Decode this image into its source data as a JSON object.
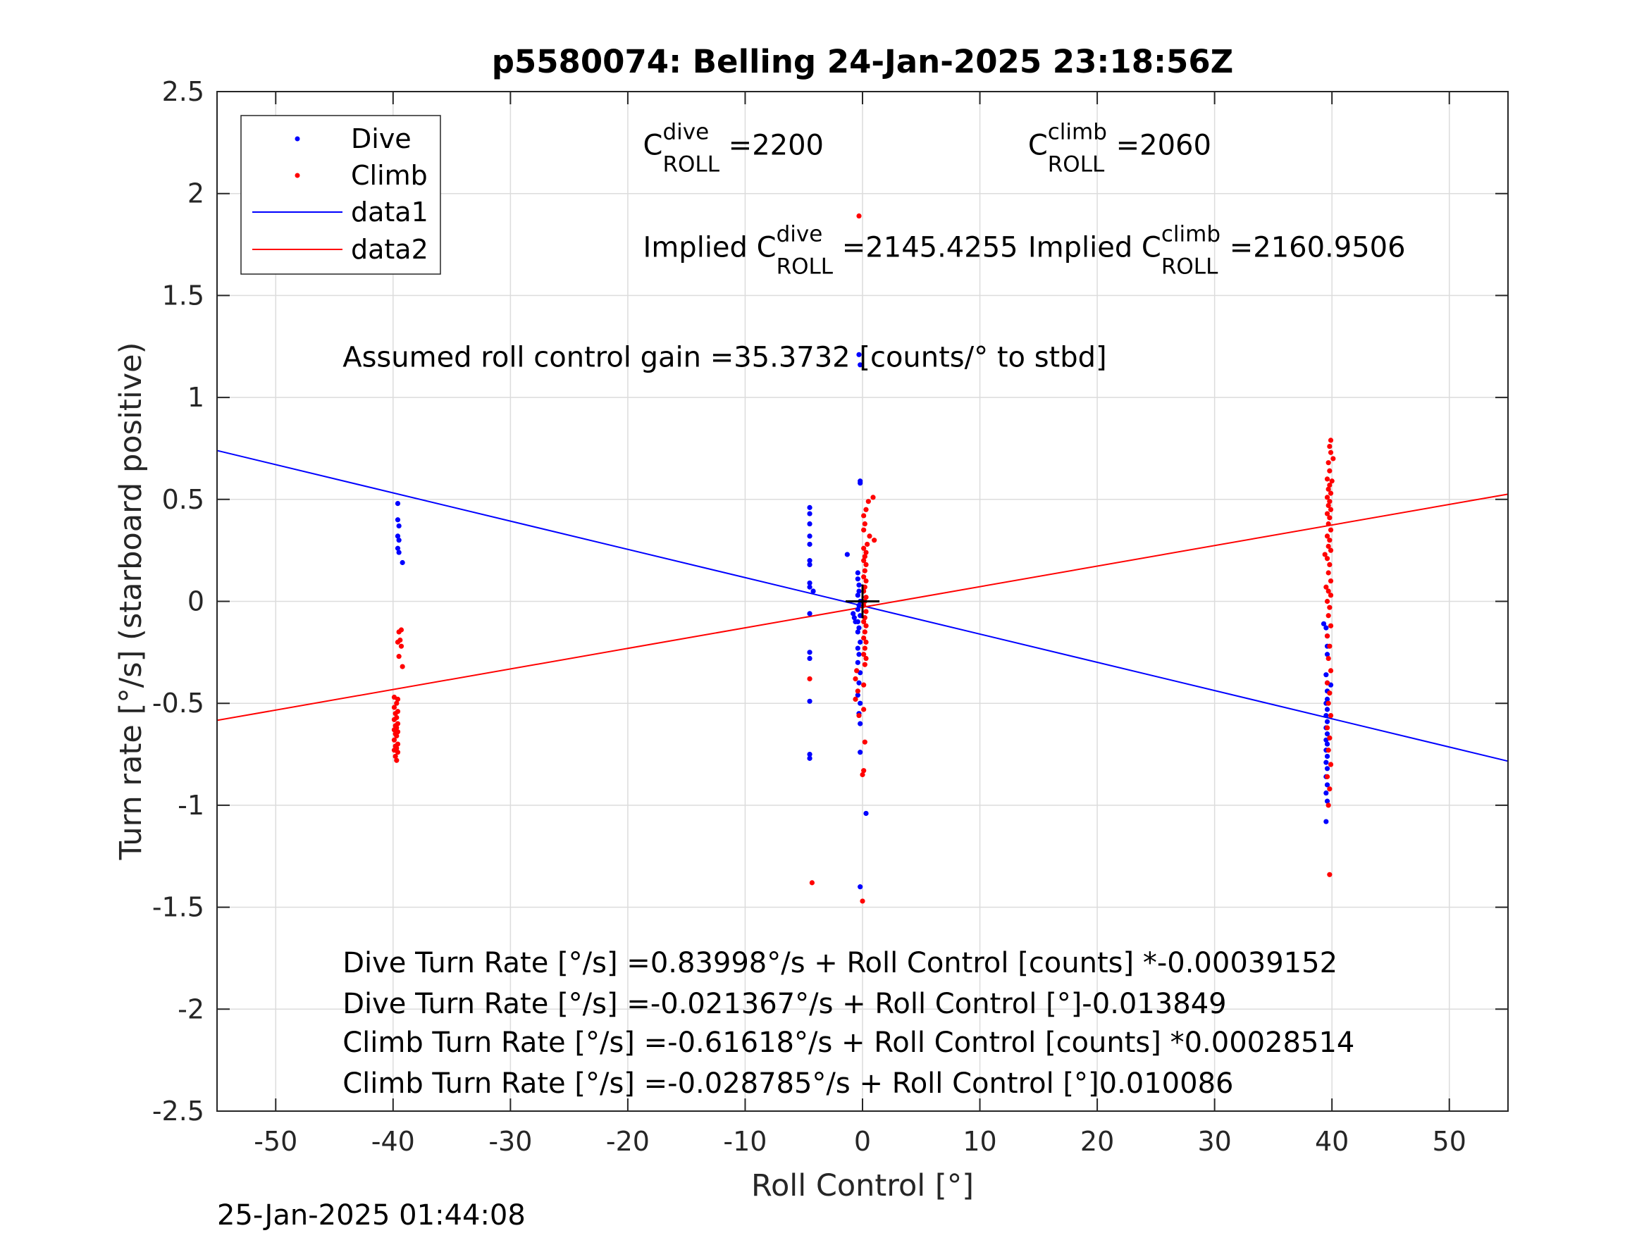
{
  "title": "p5580074: Belling 24-Jan-2025 23:18:56Z",
  "timestamp": "25-Jan-2025 01:44:08",
  "chart_data": {
    "type": "scatter",
    "title": "p5580074: Belling 24-Jan-2025 23:18:56Z",
    "xlabel": "Roll Control [°]",
    "ylabel": "Turn rate [°/s] (starboard positive)",
    "xlim": [
      -55,
      55
    ],
    "ylim": [
      -2.5,
      2.5
    ],
    "xticks": [
      -50,
      -40,
      -30,
      -20,
      -10,
      0,
      10,
      20,
      30,
      40,
      50
    ],
    "xtick_labels": [
      "-50",
      "-40",
      "-30",
      "-20",
      "-10",
      "0",
      "10",
      "20",
      "30",
      "40",
      "50"
    ],
    "yticks": [
      2.5,
      2,
      1.5,
      1,
      0.5,
      0,
      -0.5,
      -1,
      -1.5,
      -2,
      -2.5
    ],
    "ytick_labels": [
      "2.5",
      "2",
      "1.5",
      "1",
      "0.5",
      "0",
      "-0.5",
      "-1",
      "-1.5",
      "-2",
      "-2.5"
    ],
    "grid": true,
    "legend_position": "top-left",
    "legend": [
      "Dive",
      "Climb",
      "data1",
      "data2"
    ],
    "series": [
      {
        "name": "Dive",
        "kind": "points",
        "color": "#0000ff",
        "points": [
          [
            -39.6,
            0.48
          ],
          [
            -39.6,
            0.4
          ],
          [
            -39.5,
            0.37
          ],
          [
            -39.6,
            0.32
          ],
          [
            -39.5,
            0.3
          ],
          [
            -39.6,
            0.26
          ],
          [
            -39.5,
            0.24
          ],
          [
            -39.2,
            0.19
          ],
          [
            -4.5,
            0.46
          ],
          [
            -4.5,
            0.43
          ],
          [
            -4.5,
            0.38
          ],
          [
            -4.5,
            0.32
          ],
          [
            -4.5,
            0.28
          ],
          [
            -4.5,
            0.2
          ],
          [
            -4.5,
            0.18
          ],
          [
            -4.5,
            0.09
          ],
          [
            -4.5,
            0.07
          ],
          [
            -4.2,
            0.05
          ],
          [
            -4.5,
            -0.06
          ],
          [
            -4.5,
            -0.25
          ],
          [
            -4.5,
            -0.28
          ],
          [
            -4.5,
            -0.49
          ],
          [
            -4.5,
            -0.75
          ],
          [
            -4.5,
            -0.77
          ],
          [
            -1.3,
            0.23
          ],
          [
            -0.8,
            -0.06
          ],
          [
            -0.7,
            -0.08
          ],
          [
            -0.6,
            -0.1
          ],
          [
            -0.3,
            1.21
          ],
          [
            -0.2,
            1.16
          ],
          [
            -0.2,
            0.59
          ],
          [
            -0.2,
            0.58
          ],
          [
            -0.4,
            0.14
          ],
          [
            -0.4,
            0.11
          ],
          [
            -0.3,
            0.08
          ],
          [
            -0.3,
            0.05
          ],
          [
            -0.4,
            0.03
          ],
          [
            -0.2,
            0.0
          ],
          [
            -0.3,
            -0.02
          ],
          [
            -0.4,
            -0.04
          ],
          [
            -0.2,
            -0.07
          ],
          [
            -0.4,
            -0.1
          ],
          [
            -0.3,
            -0.13
          ],
          [
            -0.4,
            -0.15
          ],
          [
            -0.2,
            -0.2
          ],
          [
            -0.4,
            -0.23
          ],
          [
            -0.3,
            -0.26
          ],
          [
            -0.4,
            -0.3
          ],
          [
            -0.2,
            -0.35
          ],
          [
            -0.3,
            -0.4
          ],
          [
            -0.4,
            -0.46
          ],
          [
            -0.2,
            -0.5
          ],
          [
            -0.3,
            -0.55
          ],
          [
            -0.2,
            -0.6
          ],
          [
            -0.2,
            -0.74
          ],
          [
            0.3,
            -1.04
          ],
          [
            -0.2,
            -1.4
          ],
          [
            39.3,
            -0.11
          ],
          [
            39.5,
            -0.13
          ],
          [
            39.6,
            -0.17
          ],
          [
            39.6,
            -0.22
          ],
          [
            39.6,
            -0.26
          ],
          [
            39.5,
            -0.36
          ],
          [
            39.6,
            -0.4
          ],
          [
            39.9,
            -0.41
          ],
          [
            39.6,
            -0.44
          ],
          [
            39.6,
            -0.48
          ],
          [
            39.5,
            -0.5
          ],
          [
            39.6,
            -0.53
          ],
          [
            39.5,
            -0.56
          ],
          [
            39.6,
            -0.59
          ],
          [
            39.5,
            -0.62
          ],
          [
            39.6,
            -0.65
          ],
          [
            39.5,
            -0.68
          ],
          [
            39.6,
            -0.7
          ],
          [
            39.5,
            -0.73
          ],
          [
            39.6,
            -0.76
          ],
          [
            39.5,
            -0.79
          ],
          [
            39.6,
            -0.82
          ],
          [
            39.5,
            -0.86
          ],
          [
            39.6,
            -0.9
          ],
          [
            39.5,
            -0.94
          ],
          [
            39.6,
            -0.98
          ],
          [
            39.5,
            -1.08
          ]
        ]
      },
      {
        "name": "Climb",
        "kind": "points",
        "color": "#ff0000",
        "points": [
          [
            -39.3,
            -0.14
          ],
          [
            -39.5,
            -0.15
          ],
          [
            -39.4,
            -0.19
          ],
          [
            -39.6,
            -0.2
          ],
          [
            -39.3,
            -0.22
          ],
          [
            -39.5,
            -0.27
          ],
          [
            -39.2,
            -0.32
          ],
          [
            -39.9,
            -0.47
          ],
          [
            -39.6,
            -0.48
          ],
          [
            -39.7,
            -0.5
          ],
          [
            -39.9,
            -0.52
          ],
          [
            -39.6,
            -0.54
          ],
          [
            -39.8,
            -0.55
          ],
          [
            -39.7,
            -0.57
          ],
          [
            -39.9,
            -0.58
          ],
          [
            -39.6,
            -0.6
          ],
          [
            -39.8,
            -0.61
          ],
          [
            -39.7,
            -0.62
          ],
          [
            -39.9,
            -0.63
          ],
          [
            -39.6,
            -0.64
          ],
          [
            -39.8,
            -0.65
          ],
          [
            -39.7,
            -0.66
          ],
          [
            -39.9,
            -0.68
          ],
          [
            -39.6,
            -0.7
          ],
          [
            -39.8,
            -0.71
          ],
          [
            -39.7,
            -0.72
          ],
          [
            -39.9,
            -0.73
          ],
          [
            -39.6,
            -0.74
          ],
          [
            -39.8,
            -0.76
          ],
          [
            -39.7,
            -0.78
          ],
          [
            -4.5,
            -0.38
          ],
          [
            -4.3,
            -1.38
          ],
          [
            -0.3,
            1.89
          ],
          [
            0.5,
            0.49
          ],
          [
            0.9,
            0.51
          ],
          [
            0.3,
            0.45
          ],
          [
            0.1,
            0.42
          ],
          [
            0.2,
            0.38
          ],
          [
            0.1,
            0.35
          ],
          [
            0.6,
            0.32
          ],
          [
            1.0,
            0.3
          ],
          [
            0.4,
            0.28
          ],
          [
            0.1,
            0.26
          ],
          [
            0.3,
            0.24
          ],
          [
            0.2,
            0.22
          ],
          [
            0.1,
            0.2
          ],
          [
            0.3,
            0.18
          ],
          [
            0.2,
            0.15
          ],
          [
            0.1,
            0.12
          ],
          [
            0.3,
            0.1
          ],
          [
            0.2,
            0.07
          ],
          [
            0.1,
            0.05
          ],
          [
            0.3,
            0.02
          ],
          [
            0.2,
            0.0
          ],
          [
            0.1,
            -0.02
          ],
          [
            0.3,
            -0.05
          ],
          [
            0.2,
            -0.08
          ],
          [
            0.1,
            -0.1
          ],
          [
            0.3,
            -0.12
          ],
          [
            0.2,
            -0.15
          ],
          [
            0.1,
            -0.18
          ],
          [
            0.3,
            -0.2
          ],
          [
            0.2,
            -0.23
          ],
          [
            0.1,
            -0.26
          ],
          [
            0.3,
            -0.28
          ],
          [
            0.2,
            -0.31
          ],
          [
            -0.5,
            -0.34
          ],
          [
            -0.6,
            -0.38
          ],
          [
            0.1,
            -0.41
          ],
          [
            -0.4,
            -0.44
          ],
          [
            -0.6,
            -0.48
          ],
          [
            0.1,
            -0.53
          ],
          [
            -0.3,
            -0.56
          ],
          [
            0.2,
            -0.69
          ],
          [
            0.1,
            -0.83
          ],
          [
            0.0,
            -0.85
          ],
          [
            0.0,
            -1.47
          ],
          [
            39.9,
            0.79
          ],
          [
            39.8,
            0.76
          ],
          [
            39.9,
            0.73
          ],
          [
            40.1,
            0.7
          ],
          [
            39.7,
            0.68
          ],
          [
            39.8,
            0.64
          ],
          [
            39.6,
            0.6
          ],
          [
            40.0,
            0.59
          ],
          [
            39.8,
            0.57
          ],
          [
            39.7,
            0.55
          ],
          [
            39.9,
            0.53
          ],
          [
            39.6,
            0.51
          ],
          [
            39.8,
            0.49
          ],
          [
            39.7,
            0.47
          ],
          [
            39.9,
            0.45
          ],
          [
            39.6,
            0.43
          ],
          [
            39.8,
            0.41
          ],
          [
            39.7,
            0.38
          ],
          [
            39.9,
            0.35
          ],
          [
            39.6,
            0.32
          ],
          [
            39.8,
            0.3
          ],
          [
            39.7,
            0.27
          ],
          [
            39.9,
            0.25
          ],
          [
            39.4,
            0.23
          ],
          [
            39.6,
            0.21
          ],
          [
            39.8,
            0.18
          ],
          [
            39.7,
            0.14
          ],
          [
            39.9,
            0.1
          ],
          [
            39.5,
            0.07
          ],
          [
            39.7,
            0.05
          ],
          [
            39.9,
            0.03
          ],
          [
            39.6,
            0.0
          ],
          [
            39.8,
            -0.03
          ],
          [
            39.7,
            -0.07
          ],
          [
            39.9,
            -0.12
          ],
          [
            39.6,
            -0.17
          ],
          [
            39.8,
            -0.22
          ],
          [
            39.7,
            -0.28
          ],
          [
            39.9,
            -0.34
          ],
          [
            39.6,
            -0.4
          ],
          [
            39.8,
            -0.45
          ],
          [
            39.7,
            -0.5
          ],
          [
            39.9,
            -0.56
          ],
          [
            39.6,
            -0.62
          ],
          [
            39.8,
            -0.67
          ],
          [
            39.7,
            -0.73
          ],
          [
            39.9,
            -0.8
          ],
          [
            39.6,
            -0.86
          ],
          [
            39.8,
            -0.92
          ],
          [
            39.7,
            -1.0
          ],
          [
            39.8,
            -1.34
          ]
        ]
      },
      {
        "name": "data1",
        "kind": "line",
        "color": "#0000ff",
        "points": [
          [
            -55,
            0.7397
          ],
          [
            55,
            -0.7837
          ]
        ]
      },
      {
        "name": "data2",
        "kind": "line",
        "color": "#ff0000",
        "points": [
          [
            -55,
            -0.5836
          ],
          [
            55,
            0.5258
          ]
        ]
      }
    ],
    "annotations": [
      {
        "id": "c-dive",
        "base": "C",
        "sup": "dive",
        "sub": "ROLL",
        "suffix": " =2200",
        "x": -18.7,
        "y": 2.19
      },
      {
        "id": "c-climb",
        "base": "C",
        "sup": "climb",
        "sub": "ROLL",
        "suffix": " =2060",
        "x": 14.1,
        "y": 2.19
      },
      {
        "id": "implied-dive",
        "base": "Implied C",
        "sup": "dive",
        "sub": "ROLL",
        "suffix": " =2145.4255",
        "x": -18.7,
        "y": 1.69
      },
      {
        "id": "implied-climb",
        "base": "Implied C",
        "sup": "climb",
        "sub": "ROLL",
        "suffix": " =2160.9506",
        "x": 14.1,
        "y": 1.69
      },
      {
        "id": "roll-gain",
        "text": "Assumed roll control gain =35.3732 [counts/° to stbd]",
        "x": -44.3,
        "y": 1.15
      },
      {
        "id": "fit-1",
        "text": "Dive Turn Rate [°/s] =0.83998°/s + Roll Control [counts] *-0.00039152",
        "x": -44.3,
        "y": -1.82
      },
      {
        "id": "fit-2",
        "text": "Dive Turn Rate [°/s] =-0.021367°/s + Roll Control [°]-0.013849",
        "x": -44.3,
        "y": -2.02
      },
      {
        "id": "fit-3",
        "text": "Climb Turn Rate [°/s] =-0.61618°/s + Roll Control [counts] *0.00028514",
        "x": -44.3,
        "y": -2.21
      },
      {
        "id": "fit-4",
        "text": "Climb Turn Rate [°/s] =-0.028785°/s + Roll Control [°]0.010086",
        "x": -44.3,
        "y": -2.41
      }
    ],
    "marker": {
      "type": "plus",
      "x": 0,
      "y": 0,
      "color": "#000000"
    }
  }
}
